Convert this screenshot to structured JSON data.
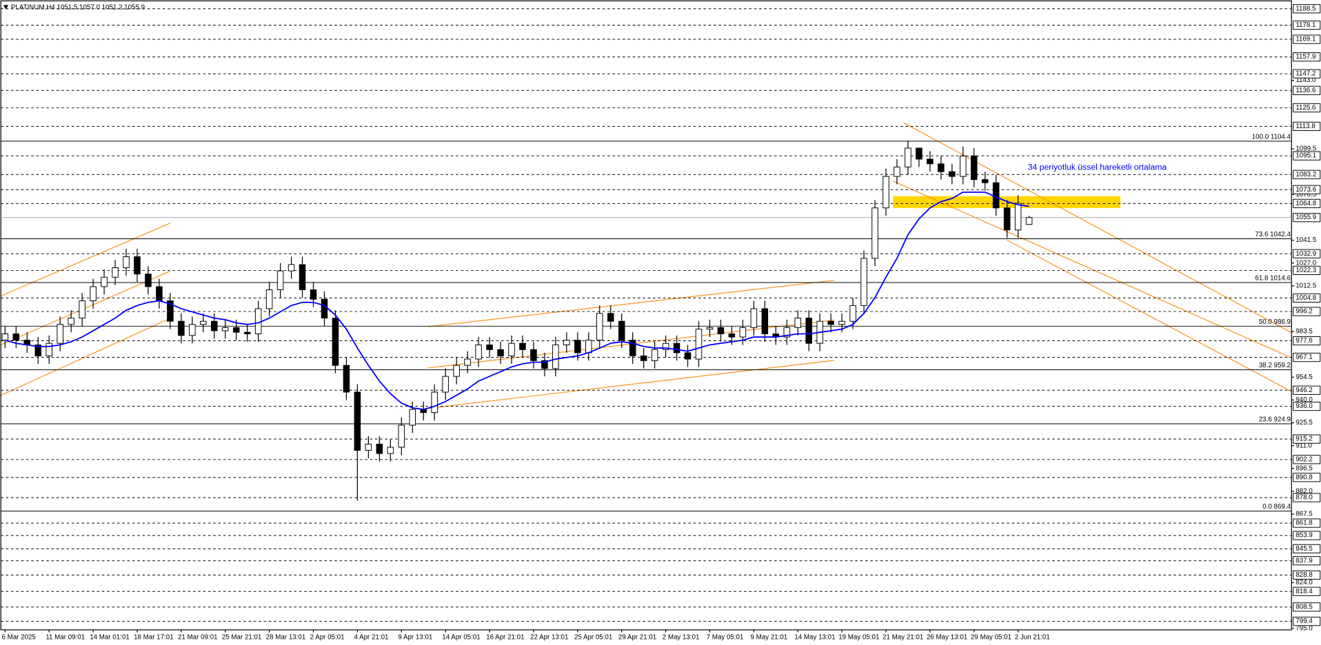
{
  "chart_data": {
    "type": "candlestick",
    "title": "PLATINUM,H4  1051.5 1057.0 1051.2 1055.9",
    "annotation": "34 periyotluk üssel hareketli ortalama",
    "categories": [
      "6 Mar 2025",
      null,
      null,
      null,
      "11 Mar 09:01",
      null,
      null,
      null,
      "14 Mar 01:01",
      null,
      null,
      null,
      "18 Mar 17:01",
      null,
      null,
      null,
      "21 Mar 09:01",
      null,
      null,
      null,
      "25 Mar 21:01",
      null,
      null,
      null,
      "28 Mar 13:01",
      null,
      null,
      null,
      "2 Apr 05:01",
      null,
      null,
      null,
      "4 Apr 21:01",
      null,
      null,
      null,
      "9 Apr 13:01",
      null,
      null,
      null,
      "14 Apr 05:01",
      null,
      null,
      null,
      "16 Apr 21:01",
      null,
      null,
      null,
      "22 Apr 13:01",
      null,
      null,
      null,
      "25 Apr 05:01",
      null,
      null,
      null,
      "29 Apr 21:01",
      null,
      null,
      null,
      "2 May 13:01",
      null,
      null,
      null,
      "7 May 05:01",
      null,
      null,
      null,
      "9 May 21:01",
      null,
      null,
      null,
      "14 May 13:01",
      null,
      null,
      null,
      "19 May 05:01",
      null,
      null,
      null,
      "21 May 21:01",
      null,
      null,
      null,
      "26 May 13:01",
      null,
      null,
      null,
      "29 May 05:01",
      null,
      null,
      null,
      "2 Jun 21:01",
      null
    ],
    "open": [
      978,
      982,
      978,
      975,
      968,
      976,
      988,
      992,
      1003,
      1012,
      1018,
      1024,
      1031,
      1020,
      1012,
      1003,
      990,
      981,
      988,
      990,
      984,
      986,
      983,
      982,
      998,
      1010,
      1022,
      1026,
      1010,
      1004,
      992,
      962,
      945,
      908,
      912,
      906,
      910,
      924,
      934,
      932,
      945,
      955,
      962,
      966,
      975,
      972,
      968,
      976,
      972,
      965,
      960,
      975,
      978,
      970,
      978,
      995,
      990,
      978,
      968,
      965,
      972,
      976,
      970,
      966,
      985,
      986,
      982,
      980,
      986,
      998,
      982,
      980,
      986,
      992,
      976,
      990,
      988,
      990,
      1000,
      1030,
      1062,
      1082,
      1088,
      1100,
      1093,
      1090,
      1085,
      1082,
      1095,
      1080,
      1078,
      1062,
      1048,
      1051.5
    ],
    "high": [
      987,
      987,
      983,
      980,
      981,
      993,
      997,
      1008,
      1017,
      1023,
      1029,
      1036,
      1036,
      1025,
      1017,
      1008,
      995,
      993,
      995,
      995,
      991,
      991,
      988,
      1003,
      1015,
      1027,
      1031,
      1031,
      1015,
      1009,
      997,
      967,
      950,
      917,
      917,
      915,
      929,
      939,
      939,
      950,
      960,
      967,
      971,
      980,
      980,
      977,
      981,
      981,
      977,
      970,
      980,
      983,
      983,
      983,
      1000,
      1000,
      995,
      983,
      973,
      977,
      981,
      981,
      975,
      990,
      991,
      991,
      987,
      991,
      1003,
      1003,
      987,
      991,
      997,
      997,
      995,
      995,
      995,
      1005,
      1035,
      1067,
      1087,
      1093,
      1104.4,
      1099,
      1098,
      1095,
      1090,
      1101,
      1100,
      1085,
      1083,
      1067,
      1070,
      1057.0
    ],
    "low": [
      973,
      973,
      970,
      963,
      963,
      971,
      983,
      987,
      998,
      1007,
      1013,
      1019,
      1015,
      1007,
      998,
      985,
      976,
      976,
      983,
      979,
      979,
      978,
      977,
      977,
      993,
      1005,
      1017,
      1005,
      999,
      987,
      957,
      940,
      876,
      903,
      901,
      901,
      905,
      919,
      927,
      927,
      940,
      950,
      957,
      961,
      967,
      963,
      963,
      967,
      960,
      955,
      955,
      970,
      965,
      965,
      973,
      985,
      973,
      963,
      960,
      960,
      967,
      965,
      961,
      961,
      980,
      977,
      975,
      975,
      981,
      977,
      975,
      975,
      981,
      971,
      971,
      983,
      983,
      985,
      995,
      1025,
      1057,
      1077,
      1083,
      1088,
      1085,
      1080,
      1077,
      1077,
      1075,
      1073,
      1057,
      1043,
      1043,
      1051.2
    ],
    "close": [
      982,
      978,
      975,
      968,
      976,
      988,
      992,
      1003,
      1012,
      1018,
      1024,
      1031,
      1020,
      1012,
      1003,
      990,
      981,
      988,
      990,
      984,
      986,
      983,
      982,
      998,
      1010,
      1022,
      1026,
      1010,
      1004,
      992,
      962,
      945,
      908,
      912,
      906,
      910,
      924,
      934,
      932,
      945,
      955,
      962,
      966,
      975,
      972,
      968,
      976,
      972,
      965,
      960,
      975,
      978,
      970,
      978,
      995,
      990,
      978,
      968,
      965,
      972,
      976,
      970,
      966,
      985,
      986,
      982,
      980,
      986,
      998,
      982,
      980,
      986,
      992,
      976,
      990,
      988,
      990,
      1000,
      1030,
      1062,
      1082,
      1088,
      1100,
      1093,
      1090,
      1085,
      1082,
      1095,
      1080,
      1078,
      1062,
      1048,
      1065,
      1055.9
    ],
    "ema": {
      "color": "#0000ff",
      "values": [
        978,
        976,
        975,
        974,
        974,
        975,
        977,
        980,
        984,
        988,
        992,
        997,
        1000,
        1002,
        1003,
        1001,
        998,
        996,
        994,
        992,
        991,
        989,
        988,
        989,
        992,
        996,
        1000,
        1002,
        1002,
        1000,
        994,
        985,
        973,
        962,
        952,
        944,
        938,
        935,
        934,
        936,
        939,
        943,
        947,
        952,
        955,
        958,
        961,
        963,
        964,
        964,
        966,
        967,
        968,
        970,
        973,
        976,
        977,
        976,
        974,
        973,
        973,
        972,
        971,
        973,
        975,
        976,
        977,
        978,
        980,
        980,
        980,
        981,
        982,
        982,
        983,
        984,
        985,
        988,
        995,
        1005,
        1018,
        1030,
        1045,
        1055,
        1062,
        1066,
        1068,
        1072,
        1072,
        1072,
        1069,
        1066,
        1064,
        1063
      ]
    },
    "ylim": [
      794,
      1193
    ],
    "yticks": [
      {
        "value": 1143,
        "label": "1143.0"
      },
      1099.5,
      1070.5,
      1041.5,
      {
        "value": 1027,
        "label": "1027.0"
      },
      1012.5,
      983.5,
      954.5,
      {
        "value": 940,
        "label": "940.0"
      },
      925.5,
      {
        "value": 911,
        "label": "911.0"
      },
      896.5,
      {
        "value": 882,
        "label": "882.0"
      },
      867.5,
      {
        "value": 824,
        "label": "824.0"
      },
      {
        "value": 795,
        "label": "795.0"
      }
    ],
    "levels": [
      1188.5,
      1178.1,
      1169.1,
      1157.9,
      1147.2,
      1136.6,
      1125.6,
      1113.8,
      1095.1,
      1083.2,
      1073.6,
      1064.8,
      1032.9,
      1022.3,
      1004.8,
      996.2,
      977.6,
      967.1,
      946.2,
      {
        "value": 936,
        "label": "936.0"
      },
      915.2,
      902.2,
      890.8,
      {
        "value": 878,
        "label": "878.0"
      },
      861.8,
      853.9,
      845.5,
      837.9,
      828.8,
      818.4,
      808.5,
      799.4
    ],
    "last_price": 1055.9,
    "fib_levels": [
      {
        "value": 1104.4,
        "label": "100.0 1104.4"
      },
      {
        "value": 1042.4,
        "label": "73.6 1042.4"
      },
      {
        "value": 1014.6,
        "label": "61.8 1014.6"
      },
      {
        "value": 986.9,
        "label": "50.0 986.9"
      },
      {
        "value": 959.2,
        "label": "38.2 959.2"
      },
      {
        "value": 924.9,
        "label": "23.6 924.9"
      },
      {
        "value": 869.4,
        "label": "0.0 869.4"
      }
    ]
  }
}
